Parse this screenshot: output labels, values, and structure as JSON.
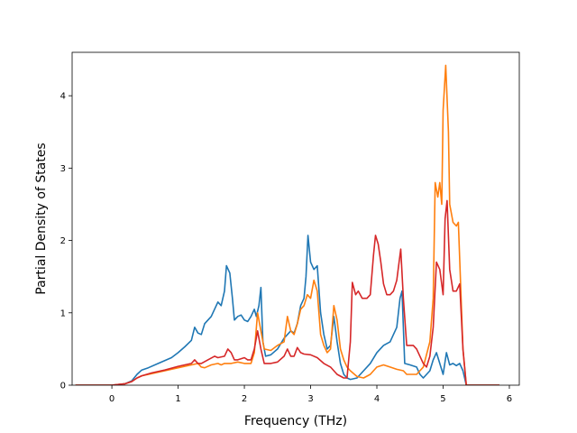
{
  "chart_data": {
    "type": "line",
    "title": "",
    "xlabel": "Frequency (THz)",
    "ylabel": "Partial Density of States",
    "xlim": [
      -0.6,
      6.15
    ],
    "ylim": [
      0,
      4.6
    ],
    "xticks": [
      0,
      1,
      2,
      3,
      4,
      5,
      6
    ],
    "yticks": [
      0,
      1,
      2,
      3,
      4
    ],
    "grid": false,
    "legend": "none",
    "series": [
      {
        "color": "#1f77b4",
        "points": [
          [
            -0.55,
            0
          ],
          [
            0,
            0
          ],
          [
            0.2,
            0.02
          ],
          [
            0.3,
            0.06
          ],
          [
            0.38,
            0.15
          ],
          [
            0.45,
            0.21
          ],
          [
            0.55,
            0.24
          ],
          [
            0.7,
            0.3
          ],
          [
            0.9,
            0.38
          ],
          [
            1.0,
            0.45
          ],
          [
            1.1,
            0.53
          ],
          [
            1.2,
            0.62
          ],
          [
            1.25,
            0.8
          ],
          [
            1.3,
            0.72
          ],
          [
            1.35,
            0.7
          ],
          [
            1.4,
            0.85
          ],
          [
            1.5,
            0.95
          ],
          [
            1.55,
            1.05
          ],
          [
            1.6,
            1.15
          ],
          [
            1.65,
            1.1
          ],
          [
            1.7,
            1.3
          ],
          [
            1.73,
            1.65
          ],
          [
            1.78,
            1.55
          ],
          [
            1.82,
            1.2
          ],
          [
            1.85,
            0.9
          ],
          [
            1.9,
            0.95
          ],
          [
            1.95,
            0.97
          ],
          [
            2.0,
            0.9
          ],
          [
            2.05,
            0.88
          ],
          [
            2.1,
            0.95
          ],
          [
            2.15,
            1.05
          ],
          [
            2.18,
            0.95
          ],
          [
            2.22,
            1.1
          ],
          [
            2.25,
            1.35
          ],
          [
            2.28,
            0.6
          ],
          [
            2.32,
            0.4
          ],
          [
            2.4,
            0.42
          ],
          [
            2.5,
            0.5
          ],
          [
            2.6,
            0.65
          ],
          [
            2.7,
            0.75
          ],
          [
            2.75,
            0.72
          ],
          [
            2.8,
            0.85
          ],
          [
            2.85,
            1.1
          ],
          [
            2.9,
            1.2
          ],
          [
            2.93,
            1.5
          ],
          [
            2.96,
            2.07
          ],
          [
            3.0,
            1.7
          ],
          [
            3.05,
            1.6
          ],
          [
            3.1,
            1.65
          ],
          [
            3.15,
            1.0
          ],
          [
            3.2,
            0.7
          ],
          [
            3.25,
            0.5
          ],
          [
            3.3,
            0.55
          ],
          [
            3.35,
            0.95
          ],
          [
            3.4,
            0.6
          ],
          [
            3.45,
            0.3
          ],
          [
            3.5,
            0.15
          ],
          [
            3.55,
            0.1
          ],
          [
            3.6,
            0.08
          ],
          [
            3.7,
            0.1
          ],
          [
            3.8,
            0.2
          ],
          [
            3.9,
            0.3
          ],
          [
            4.0,
            0.45
          ],
          [
            4.1,
            0.55
          ],
          [
            4.2,
            0.6
          ],
          [
            4.3,
            0.8
          ],
          [
            4.35,
            1.2
          ],
          [
            4.38,
            1.3
          ],
          [
            4.42,
            0.3
          ],
          [
            4.5,
            0.28
          ],
          [
            4.6,
            0.25
          ],
          [
            4.65,
            0.15
          ],
          [
            4.7,
            0.1
          ],
          [
            4.8,
            0.2
          ],
          [
            4.85,
            0.35
          ],
          [
            4.9,
            0.45
          ],
          [
            4.95,
            0.3
          ],
          [
            5.0,
            0.15
          ],
          [
            5.05,
            0.45
          ],
          [
            5.1,
            0.28
          ],
          [
            5.15,
            0.3
          ],
          [
            5.2,
            0.27
          ],
          [
            5.25,
            0.3
          ],
          [
            5.3,
            0.2
          ],
          [
            5.35,
            0
          ],
          [
            5.85,
            0
          ]
        ]
      },
      {
        "color": "#ff7f0e",
        "points": [
          [
            -0.55,
            0
          ],
          [
            0,
            0
          ],
          [
            0.2,
            0.02
          ],
          [
            0.3,
            0.05
          ],
          [
            0.38,
            0.1
          ],
          [
            0.45,
            0.13
          ],
          [
            0.6,
            0.16
          ],
          [
            0.8,
            0.2
          ],
          [
            1.0,
            0.24
          ],
          [
            1.2,
            0.28
          ],
          [
            1.3,
            0.3
          ],
          [
            1.35,
            0.25
          ],
          [
            1.4,
            0.24
          ],
          [
            1.5,
            0.28
          ],
          [
            1.6,
            0.3
          ],
          [
            1.65,
            0.28
          ],
          [
            1.7,
            0.3
          ],
          [
            1.8,
            0.3
          ],
          [
            1.9,
            0.32
          ],
          [
            2.0,
            0.3
          ],
          [
            2.1,
            0.3
          ],
          [
            2.15,
            0.45
          ],
          [
            2.2,
            1.0
          ],
          [
            2.25,
            0.75
          ],
          [
            2.3,
            0.5
          ],
          [
            2.4,
            0.48
          ],
          [
            2.5,
            0.55
          ],
          [
            2.6,
            0.6
          ],
          [
            2.65,
            0.95
          ],
          [
            2.7,
            0.75
          ],
          [
            2.75,
            0.7
          ],
          [
            2.8,
            0.85
          ],
          [
            2.85,
            1.05
          ],
          [
            2.9,
            1.1
          ],
          [
            2.95,
            1.25
          ],
          [
            3.0,
            1.2
          ],
          [
            3.05,
            1.45
          ],
          [
            3.1,
            1.3
          ],
          [
            3.15,
            0.7
          ],
          [
            3.2,
            0.55
          ],
          [
            3.25,
            0.45
          ],
          [
            3.3,
            0.5
          ],
          [
            3.35,
            1.1
          ],
          [
            3.4,
            0.9
          ],
          [
            3.45,
            0.5
          ],
          [
            3.5,
            0.35
          ],
          [
            3.55,
            0.25
          ],
          [
            3.6,
            0.2
          ],
          [
            3.7,
            0.12
          ],
          [
            3.8,
            0.1
          ],
          [
            3.9,
            0.15
          ],
          [
            4.0,
            0.25
          ],
          [
            4.1,
            0.28
          ],
          [
            4.2,
            0.25
          ],
          [
            4.3,
            0.22
          ],
          [
            4.4,
            0.2
          ],
          [
            4.45,
            0.15
          ],
          [
            4.6,
            0.15
          ],
          [
            4.7,
            0.25
          ],
          [
            4.8,
            0.6
          ],
          [
            4.85,
            1.2
          ],
          [
            4.88,
            2.8
          ],
          [
            4.92,
            2.6
          ],
          [
            4.95,
            2.8
          ],
          [
            4.98,
            2.5
          ],
          [
            5.0,
            3.8
          ],
          [
            5.04,
            4.42
          ],
          [
            5.08,
            3.5
          ],
          [
            5.1,
            2.5
          ],
          [
            5.15,
            2.25
          ],
          [
            5.2,
            2.2
          ],
          [
            5.23,
            2.25
          ],
          [
            5.26,
            1.5
          ],
          [
            5.3,
            0.5
          ],
          [
            5.35,
            0
          ],
          [
            5.85,
            0
          ]
        ]
      },
      {
        "color": "#d62728",
        "points": [
          [
            -0.55,
            0
          ],
          [
            0,
            0
          ],
          [
            0.2,
            0.02
          ],
          [
            0.3,
            0.05
          ],
          [
            0.38,
            0.1
          ],
          [
            0.45,
            0.13
          ],
          [
            0.6,
            0.17
          ],
          [
            0.8,
            0.21
          ],
          [
            1.0,
            0.26
          ],
          [
            1.2,
            0.3
          ],
          [
            1.25,
            0.35
          ],
          [
            1.3,
            0.3
          ],
          [
            1.35,
            0.3
          ],
          [
            1.45,
            0.35
          ],
          [
            1.55,
            0.4
          ],
          [
            1.6,
            0.38
          ],
          [
            1.7,
            0.4
          ],
          [
            1.75,
            0.5
          ],
          [
            1.8,
            0.45
          ],
          [
            1.85,
            0.35
          ],
          [
            1.9,
            0.35
          ],
          [
            2.0,
            0.38
          ],
          [
            2.05,
            0.35
          ],
          [
            2.1,
            0.35
          ],
          [
            2.15,
            0.5
          ],
          [
            2.2,
            0.75
          ],
          [
            2.25,
            0.5
          ],
          [
            2.3,
            0.3
          ],
          [
            2.4,
            0.3
          ],
          [
            2.5,
            0.32
          ],
          [
            2.6,
            0.4
          ],
          [
            2.65,
            0.5
          ],
          [
            2.7,
            0.4
          ],
          [
            2.75,
            0.4
          ],
          [
            2.8,
            0.52
          ],
          [
            2.85,
            0.45
          ],
          [
            2.9,
            0.43
          ],
          [
            3.0,
            0.42
          ],
          [
            3.1,
            0.38
          ],
          [
            3.2,
            0.3
          ],
          [
            3.3,
            0.25
          ],
          [
            3.4,
            0.15
          ],
          [
            3.5,
            0.1
          ],
          [
            3.55,
            0.1
          ],
          [
            3.6,
            0.6
          ],
          [
            3.63,
            1.42
          ],
          [
            3.68,
            1.25
          ],
          [
            3.72,
            1.3
          ],
          [
            3.78,
            1.2
          ],
          [
            3.85,
            1.2
          ],
          [
            3.9,
            1.25
          ],
          [
            3.95,
            1.8
          ],
          [
            3.98,
            2.07
          ],
          [
            4.02,
            1.95
          ],
          [
            4.06,
            1.7
          ],
          [
            4.1,
            1.4
          ],
          [
            4.15,
            1.25
          ],
          [
            4.2,
            1.25
          ],
          [
            4.25,
            1.3
          ],
          [
            4.3,
            1.45
          ],
          [
            4.36,
            1.88
          ],
          [
            4.4,
            1.2
          ],
          [
            4.45,
            0.55
          ],
          [
            4.55,
            0.55
          ],
          [
            4.6,
            0.5
          ],
          [
            4.7,
            0.3
          ],
          [
            4.75,
            0.25
          ],
          [
            4.8,
            0.4
          ],
          [
            4.85,
            0.8
          ],
          [
            4.9,
            1.7
          ],
          [
            4.95,
            1.6
          ],
          [
            5.0,
            1.25
          ],
          [
            5.03,
            2.3
          ],
          [
            5.06,
            2.55
          ],
          [
            5.1,
            1.6
          ],
          [
            5.15,
            1.3
          ],
          [
            5.2,
            1.3
          ],
          [
            5.25,
            1.4
          ],
          [
            5.3,
            0.5
          ],
          [
            5.35,
            0
          ],
          [
            5.85,
            0
          ]
        ]
      }
    ]
  }
}
